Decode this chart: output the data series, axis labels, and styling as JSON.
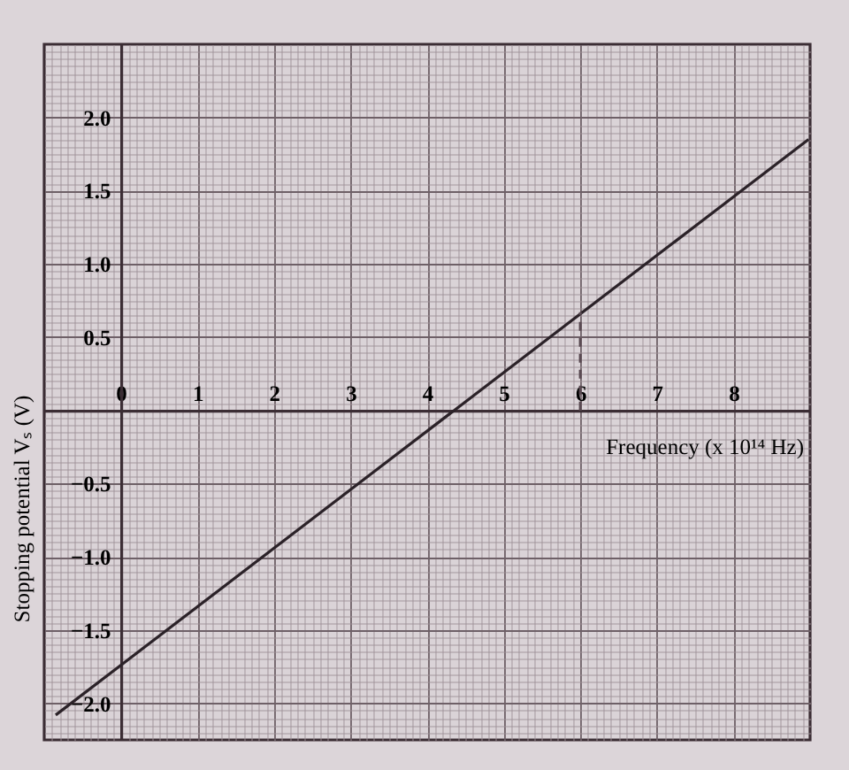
{
  "chart_data": {
    "type": "line",
    "xlabel": "Frequency (x 10¹⁴ Hz)",
    "ylabel": "Stopping potential Vₛ (V)",
    "xlim": [
      -1,
      9
    ],
    "ylim": [
      -2.25,
      2.5
    ],
    "xticks": [
      {
        "value": -0.9,
        "label": null
      },
      {
        "value": -0.8,
        "label": null
      },
      {
        "value": -0.7,
        "label": null
      },
      {
        "value": -0.6,
        "label": null
      },
      {
        "value": -0.5,
        "label": null
      },
      {
        "value": -0.4,
        "label": null
      },
      {
        "value": -0.3,
        "label": null
      },
      {
        "value": -0.2,
        "label": null
      },
      {
        "value": -0.1,
        "label": null
      },
      0,
      {
        "value": 0.1,
        "label": null
      },
      {
        "value": 0.2,
        "label": null
      },
      {
        "value": 0.3,
        "label": null
      },
      {
        "value": 0.4,
        "label": null
      },
      {
        "value": 0.5,
        "label": null
      },
      {
        "value": 0.6,
        "label": null
      },
      {
        "value": 0.7,
        "label": null
      },
      {
        "value": 0.8,
        "label": null
      },
      {
        "value": 0.9,
        "label": null
      },
      1,
      {
        "value": 1.1,
        "label": null
      },
      {
        "value": 1.2,
        "label": null
      },
      {
        "value": 1.3,
        "label": null
      },
      {
        "value": 1.4,
        "label": null
      },
      {
        "value": 1.5,
        "label": null
      },
      {
        "value": 1.6,
        "label": null
      },
      {
        "value": 1.7,
        "label": null
      },
      {
        "value": 1.8,
        "label": null
      },
      {
        "value": 1.9,
        "label": null
      },
      2,
      {
        "value": 2.1,
        "label": null
      },
      {
        "value": 2.2,
        "label": null
      },
      {
        "value": 2.3,
        "label": null
      },
      {
        "value": 2.4,
        "label": null
      },
      {
        "value": 2.5,
        "label": null
      },
      {
        "value": 2.6,
        "label": null
      },
      {
        "value": 2.7,
        "label": null
      },
      {
        "value": 2.8,
        "label": null
      },
      {
        "value": 2.9,
        "label": null
      },
      3,
      {
        "value": 3.1,
        "label": null
      },
      {
        "value": 3.2,
        "label": null
      },
      {
        "value": 3.3,
        "label": null
      },
      {
        "value": 3.4,
        "label": null
      },
      {
        "value": 3.5,
        "label": null
      },
      {
        "value": 3.6,
        "label": null
      },
      {
        "value": 3.7,
        "label": null
      },
      {
        "value": 3.8,
        "label": null
      },
      {
        "value": 3.9,
        "label": null
      },
      4,
      {
        "value": 4.1,
        "label": null
      },
      {
        "value": 4.2,
        "label": null
      },
      {
        "value": 4.3,
        "label": null
      },
      {
        "value": 4.4,
        "label": null
      },
      {
        "value": 4.5,
        "label": null
      },
      {
        "value": 4.6,
        "label": null
      },
      {
        "value": 4.7,
        "label": null
      },
      {
        "value": 4.8,
        "label": null
      },
      {
        "value": 4.9,
        "label": null
      },
      5,
      {
        "value": 5.1,
        "label": null
      },
      {
        "value": 5.2,
        "label": null
      },
      {
        "value": 5.3,
        "label": null
      },
      {
        "value": 5.4,
        "label": null
      },
      {
        "value": 5.5,
        "label": null
      },
      {
        "value": 5.6,
        "label": null
      },
      {
        "value": 5.7,
        "label": null
      },
      {
        "value": 5.8,
        "label": null
      },
      {
        "value": 5.9,
        "label": null
      },
      6,
      {
        "value": 6.1,
        "label": null
      },
      {
        "value": 6.2,
        "label": null
      },
      {
        "value": 6.3,
        "label": null
      },
      {
        "value": 6.4,
        "label": null
      },
      {
        "value": 6.5,
        "label": null
      },
      {
        "value": 6.6,
        "label": null
      },
      {
        "value": 6.7,
        "label": null
      },
      {
        "value": 6.8,
        "label": null
      },
      {
        "value": 6.9,
        "label": null
      },
      7,
      {
        "value": 7.1,
        "label": null
      },
      {
        "value": 7.2,
        "label": null
      },
      {
        "value": 7.3,
        "label": null
      },
      {
        "value": 7.4,
        "label": null
      },
      {
        "value": 7.5,
        "label": null
      },
      {
        "value": 7.6,
        "label": null
      },
      {
        "value": 7.7,
        "label": null
      },
      {
        "value": 7.8,
        "label": null
      },
      {
        "value": 7.9,
        "label": null
      },
      8,
      {
        "value": 8.1,
        "label": null
      },
      {
        "value": 8.2,
        "label": null
      },
      {
        "value": 8.3,
        "label": null
      },
      {
        "value": 8.4,
        "label": null
      },
      {
        "value": 8.5,
        "label": null
      },
      {
        "value": 8.6,
        "label": null
      },
      {
        "value": 8.7,
        "label": null
      },
      {
        "value": 8.8,
        "label": null
      },
      {
        "value": 8.9,
        "label": null
      }
    ],
    "yticks": [
      {
        "value": -2.2,
        "label": null
      },
      {
        "value": -2.15,
        "label": null
      },
      {
        "value": -2.1,
        "label": null
      },
      {
        "value": -2.05,
        "label": null
      },
      {
        "value": -2,
        "label": "−2.0"
      },
      {
        "value": -1.95,
        "label": null
      },
      {
        "value": -1.9,
        "label": null
      },
      {
        "value": -1.85,
        "label": null
      },
      {
        "value": -1.8,
        "label": null
      },
      {
        "value": -1.75,
        "label": null
      },
      {
        "value": -1.7,
        "label": null
      },
      {
        "value": -1.65,
        "label": null
      },
      {
        "value": -1.6,
        "label": null
      },
      {
        "value": -1.55,
        "label": null
      },
      {
        "value": -1.5,
        "label": "−1.5"
      },
      {
        "value": -1.45,
        "label": null
      },
      {
        "value": -1.4,
        "label": null
      },
      {
        "value": -1.35,
        "label": null
      },
      {
        "value": -1.3,
        "label": null
      },
      {
        "value": -1.25,
        "label": null
      },
      {
        "value": -1.2,
        "label": null
      },
      {
        "value": -1.15,
        "label": null
      },
      {
        "value": -1.1,
        "label": null
      },
      {
        "value": -1.05,
        "label": null
      },
      {
        "value": -1,
        "label": "−1.0"
      },
      {
        "value": -0.95,
        "label": null
      },
      {
        "value": -0.9,
        "label": null
      },
      {
        "value": -0.85,
        "label": null
      },
      {
        "value": -0.8,
        "label": null
      },
      {
        "value": -0.75,
        "label": null
      },
      {
        "value": -0.7,
        "label": null
      },
      {
        "value": -0.65,
        "label": null
      },
      {
        "value": -0.6,
        "label": null
      },
      {
        "value": -0.55,
        "label": null
      },
      {
        "value": -0.5,
        "label": "−0.5"
      },
      {
        "value": -0.45,
        "label": null
      },
      {
        "value": -0.4,
        "label": null
      },
      {
        "value": -0.35,
        "label": null
      },
      {
        "value": -0.3,
        "label": null
      },
      {
        "value": -0.25,
        "label": null
      },
      {
        "value": -0.2,
        "label": null
      },
      {
        "value": -0.15,
        "label": null
      },
      {
        "value": -0.1,
        "label": null
      },
      {
        "value": -0.05,
        "label": null
      },
      {
        "value": 0,
        "label": null
      },
      {
        "value": 0.05,
        "label": null
      },
      {
        "value": 0.1,
        "label": null
      },
      {
        "value": 0.15,
        "label": null
      },
      {
        "value": 0.2,
        "label": null
      },
      {
        "value": 0.25,
        "label": null
      },
      {
        "value": 0.3,
        "label": null
      },
      {
        "value": 0.35,
        "label": null
      },
      {
        "value": 0.4,
        "label": null
      },
      {
        "value": 0.45,
        "label": null
      },
      0.5,
      {
        "value": 0.55,
        "label": null
      },
      {
        "value": 0.6,
        "label": null
      },
      {
        "value": 0.65,
        "label": null
      },
      {
        "value": 0.7,
        "label": null
      },
      {
        "value": 0.75,
        "label": null
      },
      {
        "value": 0.8,
        "label": null
      },
      {
        "value": 0.85,
        "label": null
      },
      {
        "value": 0.9,
        "label": null
      },
      {
        "value": 0.95,
        "label": null
      },
      {
        "value": 1,
        "label": "1.0"
      },
      {
        "value": 1.05,
        "label": null
      },
      {
        "value": 1.1,
        "label": null
      },
      {
        "value": 1.15,
        "label": null
      },
      {
        "value": 1.2,
        "label": null
      },
      {
        "value": 1.25,
        "label": null
      },
      {
        "value": 1.3,
        "label": null
      },
      {
        "value": 1.35,
        "label": null
      },
      {
        "value": 1.4,
        "label": null
      },
      {
        "value": 1.45,
        "label": null
      },
      1.5,
      {
        "value": 1.55,
        "label": null
      },
      {
        "value": 1.6,
        "label": null
      },
      {
        "value": 1.65,
        "label": null
      },
      {
        "value": 1.7,
        "label": null
      },
      {
        "value": 1.75,
        "label": null
      },
      {
        "value": 1.8,
        "label": null
      },
      {
        "value": 1.85,
        "label": null
      },
      {
        "value": 1.9,
        "label": null
      },
      {
        "value": 1.95,
        "label": null
      },
      {
        "value": 2,
        "label": "2.0"
      },
      {
        "value": 2.05,
        "label": null
      },
      {
        "value": 2.1,
        "label": null
      },
      {
        "value": 2.15,
        "label": null
      },
      {
        "value": 2.2,
        "label": null
      },
      {
        "value": 2.25,
        "label": null
      },
      {
        "value": 2.3,
        "label": null
      },
      {
        "value": 2.35,
        "label": null
      },
      {
        "value": 2.4,
        "label": null
      },
      {
        "value": 2.45,
        "label": null
      }
    ],
    "grid": true,
    "series": [
      {
        "color": "#2b2228",
        "x": [
          -0.85,
          8.98
        ],
        "values": [
          -2.08,
          1.85
        ]
      },
      {
        "color": "#5a4a52",
        "line_style": "dashed",
        "x": [
          6,
          6
        ],
        "values": [
          0,
          0.67
        ]
      }
    ]
  }
}
